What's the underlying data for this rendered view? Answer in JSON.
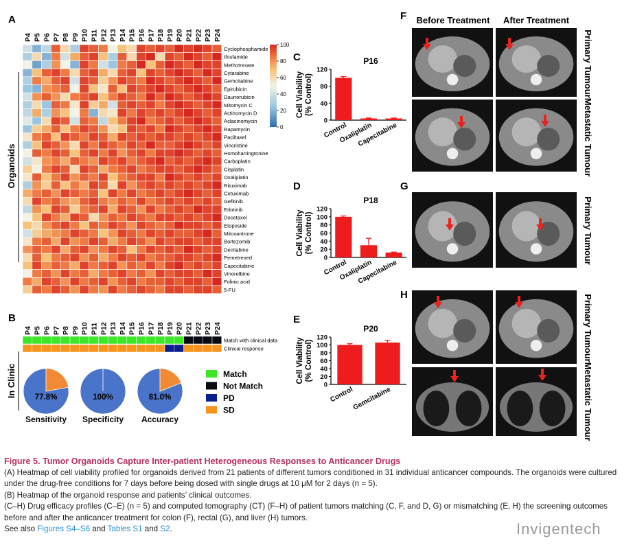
{
  "panel_a": {
    "label": "A",
    "side_label": "Organoids",
    "columns": [
      "P4",
      "P5",
      "P6",
      "P7",
      "P8",
      "P9",
      "P10",
      "P11",
      "P12",
      "P13",
      "P14",
      "P15",
      "P16",
      "P17",
      "P18",
      "P19",
      "P20",
      "P21",
      "P22",
      "P23",
      "P24"
    ],
    "rows": [
      "Cyclophosphamide",
      "Ifosfamide",
      "Methotrexate",
      "Cytarabine",
      "Gemcitabine",
      "Epirubicin",
      "Daunorubicin",
      "Mitomycin C",
      "Actinomycin D",
      "Aclacinomycin",
      "Rapamycin",
      "Paclitaxel",
      "Vincristine",
      "Homoharringtonine",
      "Carboplatin",
      "Cisplatin",
      "Oxaliplatin",
      "Rituximab",
      "Cetuximab",
      "Gefitinib",
      "Erlotinib",
      "Docetaxel",
      "Etoposide",
      "Mitoxantrone",
      "Bortezomib",
      "Decitabine",
      "Pemetrexed",
      "Capecitabine",
      "Vinorelbine",
      "Folinic acid",
      "5-FU"
    ],
    "values": [
      [
        40,
        20,
        35,
        90,
        60,
        30,
        95,
        90,
        85,
        50,
        70,
        60,
        95,
        90,
        95,
        90,
        100,
        95,
        100,
        95,
        90
      ],
      [
        30,
        60,
        20,
        85,
        40,
        75,
        90,
        95,
        70,
        30,
        90,
        60,
        95,
        100,
        60,
        95,
        90,
        100,
        95,
        90,
        100
      ],
      [
        50,
        15,
        30,
        80,
        50,
        20,
        95,
        85,
        40,
        25,
        85,
        90,
        100,
        70,
        90,
        100,
        95,
        90,
        100,
        95,
        95
      ],
      [
        20,
        70,
        90,
        95,
        85,
        60,
        90,
        95,
        75,
        60,
        90,
        95,
        70,
        95,
        90,
        95,
        100,
        95,
        90,
        100,
        95
      ],
      [
        30,
        85,
        75,
        90,
        95,
        40,
        95,
        90,
        65,
        80,
        95,
        90,
        85,
        100,
        95,
        90,
        95,
        100,
        95,
        90,
        100
      ],
      [
        25,
        20,
        80,
        85,
        90,
        50,
        95,
        70,
        55,
        90,
        70,
        95,
        90,
        95,
        100,
        95,
        90,
        95,
        100,
        95,
        90
      ],
      [
        40,
        80,
        90,
        80,
        60,
        85,
        90,
        95,
        70,
        85,
        95,
        90,
        85,
        100,
        90,
        100,
        95,
        90,
        95,
        100,
        95
      ],
      [
        30,
        60,
        25,
        90,
        85,
        55,
        95,
        65,
        75,
        40,
        90,
        95,
        90,
        95,
        85,
        95,
        100,
        95,
        90,
        95,
        100
      ],
      [
        35,
        75,
        30,
        80,
        70,
        50,
        85,
        20,
        60,
        55,
        95,
        85,
        95,
        90,
        95,
        90,
        95,
        100,
        95,
        90,
        95
      ],
      [
        45,
        25,
        60,
        95,
        90,
        40,
        90,
        85,
        35,
        70,
        85,
        95,
        100,
        85,
        90,
        95,
        90,
        95,
        100,
        95,
        90
      ],
      [
        25,
        65,
        75,
        90,
        70,
        85,
        95,
        90,
        80,
        60,
        70,
        95,
        90,
        95,
        85,
        100,
        95,
        90,
        95,
        100,
        95
      ],
      [
        55,
        85,
        90,
        70,
        95,
        90,
        85,
        95,
        90,
        75,
        95,
        90,
        95,
        90,
        95,
        95,
        90,
        95,
        90,
        95,
        100
      ],
      [
        30,
        70,
        95,
        90,
        80,
        60,
        95,
        85,
        95,
        90,
        85,
        95,
        90,
        100,
        90,
        90,
        95,
        100,
        95,
        90,
        95
      ],
      [
        50,
        90,
        85,
        95,
        90,
        70,
        90,
        95,
        85,
        95,
        80,
        90,
        95,
        85,
        95,
        95,
        100,
        95,
        90,
        95,
        90
      ],
      [
        40,
        55,
        80,
        85,
        75,
        90,
        85,
        80,
        95,
        90,
        95,
        85,
        90,
        95,
        100,
        90,
        95,
        90,
        95,
        100,
        95
      ],
      [
        65,
        50,
        85,
        95,
        90,
        60,
        95,
        90,
        75,
        85,
        90,
        95,
        85,
        90,
        95,
        95,
        90,
        95,
        100,
        95,
        90
      ],
      [
        55,
        90,
        70,
        85,
        95,
        80,
        90,
        85,
        95,
        70,
        85,
        90,
        95,
        95,
        85,
        100,
        95,
        90,
        95,
        90,
        95
      ],
      [
        30,
        80,
        65,
        90,
        70,
        85,
        75,
        95,
        90,
        60,
        95,
        80,
        90,
        95,
        90,
        95,
        90,
        95,
        90,
        95,
        100
      ],
      [
        75,
        85,
        90,
        80,
        95,
        90,
        85,
        90,
        70,
        95,
        85,
        95,
        85,
        90,
        95,
        90,
        95,
        100,
        95,
        90,
        95
      ],
      [
        60,
        95,
        85,
        90,
        80,
        75,
        90,
        95,
        85,
        80,
        90,
        85,
        95,
        85,
        90,
        95,
        90,
        95,
        90,
        95,
        90
      ],
      [
        35,
        80,
        70,
        95,
        90,
        65,
        85,
        90,
        95,
        75,
        95,
        90,
        80,
        95,
        85,
        90,
        95,
        90,
        100,
        95,
        95
      ],
      [
        50,
        70,
        95,
        85,
        75,
        95,
        90,
        60,
        80,
        90,
        85,
        95,
        90,
        85,
        95,
        95,
        90,
        95,
        90,
        95,
        100
      ],
      [
        70,
        60,
        80,
        90,
        95,
        85,
        70,
        90,
        85,
        95,
        90,
        80,
        95,
        90,
        85,
        90,
        100,
        95,
        95,
        90,
        95
      ],
      [
        40,
        65,
        75,
        80,
        85,
        95,
        90,
        85,
        70,
        80,
        95,
        90,
        85,
        95,
        90,
        95,
        90,
        90,
        95,
        100,
        90
      ],
      [
        55,
        85,
        90,
        75,
        95,
        80,
        85,
        95,
        90,
        75,
        85,
        95,
        90,
        80,
        95,
        90,
        95,
        95,
        90,
        95,
        95
      ],
      [
        80,
        90,
        85,
        95,
        75,
        90,
        95,
        80,
        85,
        95,
        90,
        70,
        85,
        95,
        90,
        95,
        90,
        100,
        95,
        90,
        95
      ],
      [
        60,
        90,
        70,
        85,
        90,
        95,
        80,
        90,
        75,
        85,
        95,
        90,
        95,
        85,
        90,
        90,
        95,
        95,
        90,
        95,
        100
      ],
      [
        70,
        95,
        80,
        90,
        85,
        75,
        95,
        85,
        90,
        95,
        80,
        90,
        85,
        95,
        85,
        95,
        100,
        90,
        95,
        90,
        95
      ],
      [
        50,
        85,
        90,
        80,
        95,
        85,
        90,
        75,
        85,
        90,
        95,
        85,
        90,
        80,
        95,
        90,
        95,
        95,
        90,
        100,
        95
      ],
      [
        85,
        75,
        95,
        90,
        80,
        95,
        85,
        90,
        95,
        80,
        90,
        95,
        85,
        90,
        90,
        95,
        90,
        95,
        95,
        90,
        100
      ],
      [
        65,
        90,
        85,
        95,
        90,
        80,
        95,
        85,
        80,
        95,
        85,
        90,
        95,
        90,
        85,
        95,
        95,
        90,
        95,
        95,
        90
      ]
    ],
    "colorbar": {
      "lim": [
        0,
        100
      ],
      "ticks": [
        0,
        20,
        40,
        60,
        80,
        100
      ]
    }
  },
  "panel_b": {
    "label": "B",
    "side_label": "In Clinic",
    "columns": [
      "P4",
      "P5",
      "P6",
      "P7",
      "P8",
      "P9",
      "P10",
      "P11",
      "P12",
      "P13",
      "P14",
      "P15",
      "P16",
      "P17",
      "P18",
      "P19",
      "P20",
      "P21",
      "P22",
      "P23",
      "P24"
    ],
    "legend": [
      {
        "label": "Match",
        "color": "#3ee62a"
      },
      {
        "label": "Not Match",
        "color": "#0a0a14"
      },
      {
        "label": "PD",
        "color": "#0a1f8c"
      },
      {
        "label": "SD",
        "color": "#f7941d"
      }
    ],
    "rows": [
      {
        "label": "Match with clinical data",
        "cells": [
          0,
          0,
          0,
          0,
          0,
          0,
          0,
          0,
          0,
          0,
          0,
          0,
          0,
          0,
          0,
          0,
          0,
          1,
          1,
          1,
          1
        ]
      },
      {
        "label": "Clinical response",
        "cells": [
          3,
          3,
          3,
          3,
          3,
          3,
          3,
          3,
          3,
          3,
          3,
          3,
          3,
          3,
          3,
          2,
          2,
          3,
          3,
          3,
          3
        ]
      }
    ],
    "pies": [
      {
        "label": "Sensitivity",
        "value": 77.8,
        "value_label": "77.8%"
      },
      {
        "label": "Specificity",
        "value": 100,
        "value_label": "100%"
      },
      {
        "label": "Accuracy",
        "value": 81,
        "value_label": "81.0%"
      }
    ],
    "pie_colors": [
      "#4a74c9",
      "#f08a34"
    ]
  },
  "bar_panels": [
    {
      "label": "C",
      "title": "P16",
      "ylabel": [
        "Cell Viability",
        "(% Control)"
      ],
      "categories": [
        "Control",
        "Oxaliplatin",
        "Capecitabine"
      ],
      "values": [
        100,
        4,
        4
      ],
      "errors": [
        3,
        1,
        1
      ],
      "ylim": [
        0,
        120
      ],
      "yticks": [
        0,
        40,
        80,
        120
      ],
      "color": "#ee1c1c"
    },
    {
      "label": "D",
      "title": "P18",
      "ylabel": [
        "Cell Viability",
        "(% Control)"
      ],
      "categories": [
        "Control",
        "Oxaliplatin",
        "Capecitabine"
      ],
      "values": [
        100,
        30,
        12
      ],
      "errors": [
        2,
        17,
        1
      ],
      "ylim": [
        0,
        120
      ],
      "yticks": [
        0,
        20,
        40,
        60,
        80,
        100,
        120
      ],
      "color": "#ee1c1c"
    },
    {
      "label": "E",
      "title": "P20",
      "ylabel": [
        "Cell Viability",
        "(% Control)"
      ],
      "categories": [
        "Control",
        "Gemcitabine"
      ],
      "values": [
        100,
        106
      ],
      "errors": [
        3,
        6
      ],
      "ylim": [
        0,
        120
      ],
      "yticks": [
        0,
        20,
        40,
        60,
        80,
        100,
        120
      ],
      "color": "#ee1c1c"
    }
  ],
  "ct": {
    "labels": [
      "F",
      "G",
      "H"
    ],
    "before": "Before Treatment",
    "after": "After Treatment",
    "primary": "Primary Tumour",
    "metastatic": "Metastatic Tumour"
  },
  "caption": {
    "title": "Figure 5. Tumor Organoids Capture Inter-patient Heterogeneous Responses to Anticancer Drugs",
    "a": "(A) Heatmap of cell viability profiled for organoids derived from 21 patients of different tumors conditioned in 31 individual anticancer compounds. The organoids were cultured under the drug-free conditions for 7 days before being dosed with single drugs at 10 μM for 2 days (n = 5).",
    "b": "(B) Heatmap of the organoid response and patients’ clinical outcomes.",
    "c": "(C–H) Drug efficacy profiles (C–E) (n = 5) and computed tomography (CT) (F–H) of patient tumors matching (C, F, and D, G) or mismatching (E, H) the screening outcomes before and after the anticancer treatment for colon (F), rectal (G), and liver (H) tumors.",
    "see": [
      "See also ",
      "Figures S4–S6",
      " and ",
      "Tables S1",
      " and ",
      "S2",
      "."
    ]
  },
  "watermark": "Invigentech"
}
